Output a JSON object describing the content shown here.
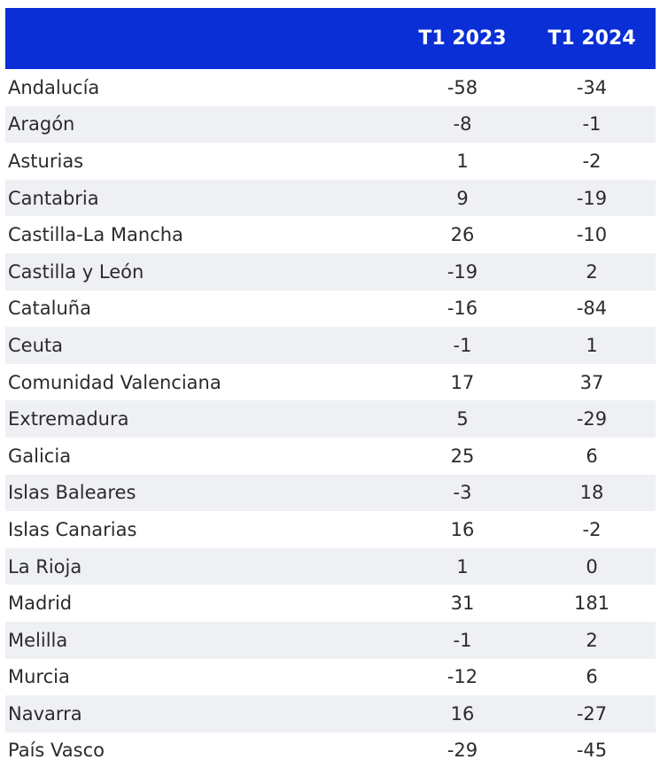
{
  "chart_data": {
    "type": "table",
    "columns": [
      "",
      "T1 2023",
      "T1 2024"
    ],
    "rows": [
      {
        "region": "Andalucía",
        "t1_2023": "-58",
        "t1_2024": "-34"
      },
      {
        "region": "Aragón",
        "t1_2023": "-8",
        "t1_2024": "-1"
      },
      {
        "region": "Asturias",
        "t1_2023": "1",
        "t1_2024": "-2"
      },
      {
        "region": "Cantabria",
        "t1_2023": "9",
        "t1_2024": "-19"
      },
      {
        "region": "Castilla-La Mancha",
        "t1_2023": "26",
        "t1_2024": "-10"
      },
      {
        "region": "Castilla y León",
        "t1_2023": "-19",
        "t1_2024": "2"
      },
      {
        "region": "Cataluña",
        "t1_2023": "-16",
        "t1_2024": "-84"
      },
      {
        "region": "Ceuta",
        "t1_2023": "-1",
        "t1_2024": "1"
      },
      {
        "region": "Comunidad Valenciana",
        "t1_2023": "17",
        "t1_2024": "37"
      },
      {
        "region": "Extremadura",
        "t1_2023": "5",
        "t1_2024": "-29"
      },
      {
        "region": "Galicia",
        "t1_2023": "25",
        "t1_2024": "6"
      },
      {
        "region": "Islas Baleares",
        "t1_2023": "-3",
        "t1_2024": "18"
      },
      {
        "region": "Islas Canarias",
        "t1_2023": "16",
        "t1_2024": "-2"
      },
      {
        "region": "La Rioja",
        "t1_2023": "1",
        "t1_2024": "0"
      },
      {
        "region": "Madrid",
        "t1_2023": "31",
        "t1_2024": "181"
      },
      {
        "region": "Melilla",
        "t1_2023": "-1",
        "t1_2024": "2"
      },
      {
        "region": "Murcia",
        "t1_2023": "-12",
        "t1_2024": "6"
      },
      {
        "region": "Navarra",
        "t1_2023": "16",
        "t1_2024": "-27"
      },
      {
        "region": "País Vasco",
        "t1_2023": "-29",
        "t1_2024": "-45"
      }
    ]
  },
  "colors": {
    "header_background": "#0a2fd7",
    "header_text": "#ffffff",
    "stripe_background": "#eef0f4",
    "body_text": "#2b2b2b"
  }
}
